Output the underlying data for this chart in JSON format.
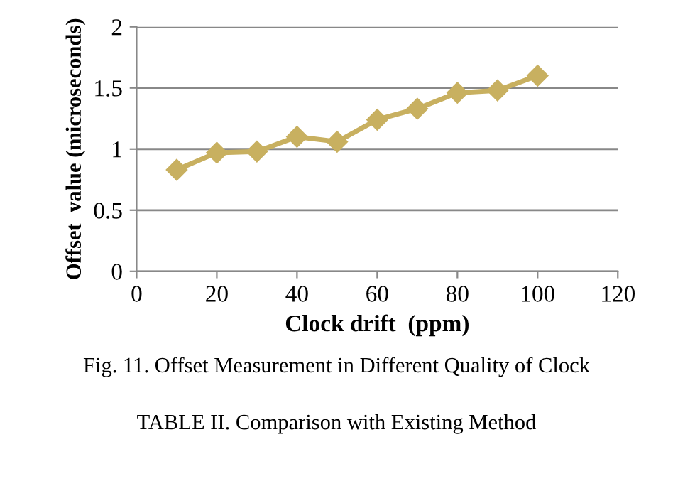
{
  "chart_data": {
    "type": "line",
    "xlabel": "Clock drift  (ppm)",
    "ylabel": "Offset  value (microseconds)",
    "x": [
      10,
      20,
      30,
      40,
      50,
      60,
      70,
      80,
      90,
      100
    ],
    "series": [
      {
        "color": "#c8b060",
        "values": [
          0.83,
          0.97,
          0.98,
          1.1,
          1.06,
          1.24,
          1.33,
          1.46,
          1.48,
          1.6
        ]
      }
    ],
    "xlim": [
      0,
      120
    ],
    "xticks": [
      0,
      20,
      40,
      60,
      80,
      100,
      120
    ],
    "ylim": [
      0,
      2
    ],
    "yticks": [
      0,
      0.5,
      1,
      1.5,
      2
    ],
    "grid": "y",
    "marker": "diamond",
    "line_style": "solid",
    "legend": false,
    "annotations": [
      "Fig. 11. Offset Measurement in Different Quality of Clock",
      "TABLE II. Comparison with Existing Method"
    ]
  }
}
